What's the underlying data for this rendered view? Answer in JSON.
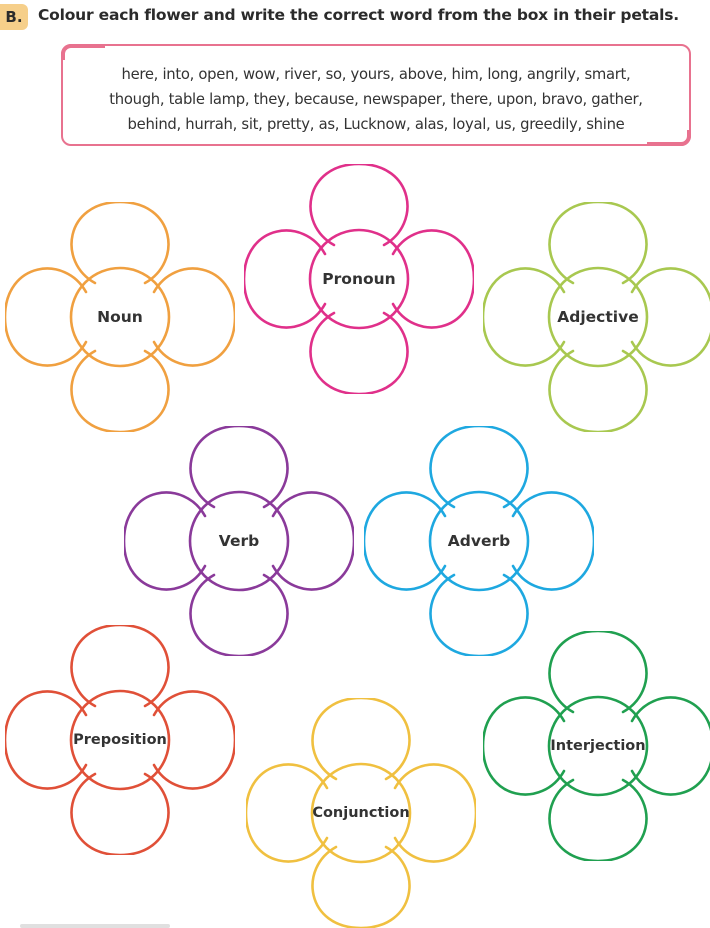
{
  "exercise": {
    "letter": "B.",
    "instruction": "Colour each flower and write the correct word from the box in their petals."
  },
  "word_box": {
    "line1": "here, into, open, wow, river, so, yours, above, him, long, angrily, smart,",
    "line2": "though, table lamp, they, because, newspaper, there, upon, bravo, gather,",
    "line3": "behind, hurrah, sit, pretty, as, Lucknow, alas, loyal, us, greedily, shine",
    "border_color": "#e8728f"
  },
  "flowers": [
    {
      "label": "Noun",
      "color": "#f0a040"
    },
    {
      "label": "Pronoun",
      "color": "#e0308a"
    },
    {
      "label": "Adjective",
      "color": "#a8c850"
    },
    {
      "label": "Verb",
      "color": "#8a3a9a"
    },
    {
      "label": "Adverb",
      "color": "#1ea8e0"
    },
    {
      "label": "Preposition",
      "color": "#e05038"
    },
    {
      "label": "Conjunction",
      "color": "#f0c040"
    },
    {
      "label": "Interjection",
      "color": "#20a050"
    }
  ]
}
